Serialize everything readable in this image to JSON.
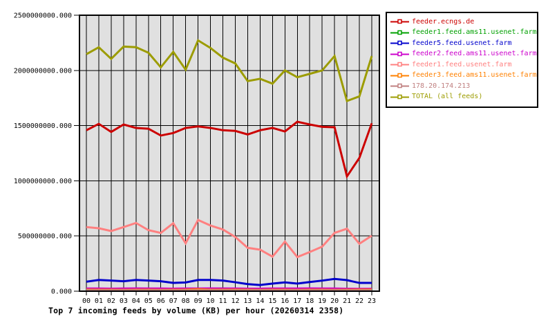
{
  "chart_data": {
    "type": "line",
    "title": "Top 7 incoming feeds by volume (KB) per hour (20260314 2358)",
    "xlabel": "",
    "ylabel": "",
    "categories": [
      "00",
      "01",
      "02",
      "03",
      "04",
      "05",
      "06",
      "07",
      "08",
      "09",
      "10",
      "11",
      "12",
      "13",
      "14",
      "15",
      "16",
      "17",
      "18",
      "19",
      "20",
      "21",
      "22",
      "23"
    ],
    "ylim": [
      0,
      2500000000
    ],
    "y_ticks": [
      {
        "value": 0,
        "label": "0.000"
      },
      {
        "value": 500000000,
        "label": "500000000.000"
      },
      {
        "value": 1000000000,
        "label": "1000000000.000"
      },
      {
        "value": 1500000000,
        "label": "1500000000.000"
      },
      {
        "value": 2000000000,
        "label": "2000000000.000"
      },
      {
        "value": 2500000000,
        "label": "2500000000.000"
      }
    ],
    "grid": "both",
    "plot_background": "#e0e0e0",
    "grid_color": "#000000",
    "legend_position": "outside-right-top",
    "series": [
      {
        "name": "feeder.ecngs.de",
        "color": "#cc0000",
        "values": [
          1458000000,
          1516000000,
          1443000000,
          1510000000,
          1479000000,
          1472000000,
          1410000000,
          1433000000,
          1479000000,
          1493000000,
          1479000000,
          1458000000,
          1452000000,
          1420000000,
          1458000000,
          1479000000,
          1447000000,
          1535000000,
          1510000000,
          1489000000,
          1485000000,
          1040000000,
          1207000000,
          1521000000
        ]
      },
      {
        "name": "feeder1.feed.ams11.usenet.farm",
        "color": "#00a000",
        "values": [
          4000000,
          4000000,
          4000000,
          4000000,
          4000000,
          4000000,
          4000000,
          4000000,
          4000000,
          5000000,
          22000000,
          24000000,
          20000000,
          5000000,
          4000000,
          4000000,
          4000000,
          4000000,
          4000000,
          4000000,
          4000000,
          4000000,
          4000000,
          4000000
        ]
      },
      {
        "name": "feeder5.feed.usenet.farm",
        "color": "#0000cc",
        "values": [
          86000000,
          102000000,
          96000000,
          90000000,
          102000000,
          96000000,
          90000000,
          75000000,
          79000000,
          102000000,
          102000000,
          96000000,
          81000000,
          64000000,
          56000000,
          69000000,
          80000000,
          69000000,
          83000000,
          96000000,
          111000000,
          100000000,
          75000000,
          75000000
        ]
      },
      {
        "name": "feeder2.feed.ams11.usenet.farm",
        "color": "#cc00cc",
        "values": [
          24000000,
          24000000,
          23000000,
          24000000,
          25000000,
          24000000,
          24000000,
          23000000,
          24000000,
          24000000,
          25000000,
          24000000,
          24000000,
          23000000,
          23000000,
          24000000,
          24000000,
          24000000,
          25000000,
          24000000,
          24000000,
          22000000,
          21000000,
          22000000
        ]
      },
      {
        "name": "feeder1.feed.usenet.farm",
        "color": "#ff8080",
        "values": [
          581000000,
          570000000,
          545000000,
          581000000,
          618000000,
          553000000,
          528000000,
          616000000,
          434000000,
          645000000,
          595000000,
          559000000,
          491000000,
          393000000,
          376000000,
          313000000,
          449000000,
          309000000,
          355000000,
          403000000,
          528000000,
          566000000,
          430000000,
          503000000
        ]
      },
      {
        "name": "feeder3.feed.ams11.usenet.farm",
        "color": "#ff8000",
        "values": [
          14000000,
          13000000,
          13000000,
          12000000,
          13000000,
          13000000,
          12000000,
          13000000,
          14000000,
          18000000,
          13000000,
          13000000,
          14000000,
          13000000,
          12000000,
          13000000,
          13000000,
          12000000,
          13000000,
          13000000,
          12000000,
          13000000,
          14000000,
          15000000
        ]
      },
      {
        "name": "178.20.174.213",
        "color": "#c08080",
        "values": [
          8000000,
          8000000,
          8000000,
          8000000,
          8000000,
          8000000,
          8000000,
          8000000,
          8000000,
          8000000,
          8000000,
          8000000,
          8000000,
          8000000,
          8000000,
          8000000,
          8000000,
          8000000,
          8000000,
          8000000,
          8000000,
          8000000,
          8000000,
          8000000
        ]
      },
      {
        "name": "TOTAL (all feeds)",
        "color": "#9c9c00",
        "values": [
          2147000000,
          2210000000,
          2105000000,
          2216000000,
          2210000000,
          2160000000,
          2028000000,
          2168000000,
          2007000000,
          2272000000,
          2203000000,
          2116000000,
          2063000000,
          1903000000,
          1924000000,
          1880000000,
          2000000000,
          1938000000,
          1969000000,
          2000000000,
          2130000000,
          1723000000,
          1765000000,
          2130000000
        ]
      }
    ]
  }
}
